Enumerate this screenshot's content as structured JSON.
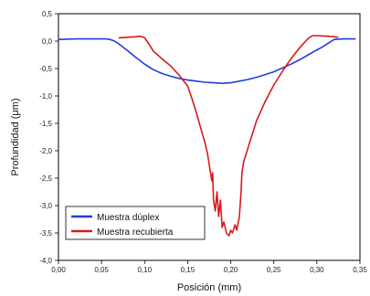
{
  "chart_data": {
    "type": "line",
    "xlabel": "Posición (mm)",
    "ylabel": "Profundidad (μm)",
    "xlim": [
      0.0,
      0.35
    ],
    "ylim": [
      -4.0,
      0.5
    ],
    "x_ticks": [
      "0,00",
      "0,05",
      "0,10",
      "0,15",
      "0,20",
      "0,25",
      "0,30",
      "0,35"
    ],
    "y_ticks": [
      "0,5",
      "0,0",
      "-0,5",
      "-1,0",
      "-1,5",
      "-2,0",
      "-2,5",
      "-3,0",
      "-3,5",
      "-4,0"
    ],
    "grid": false,
    "legend_position": "bottom-left",
    "series": [
      {
        "name": "Muestra dúplex",
        "color": "#1f3fd6",
        "points": [
          [
            0.0,
            0.03
          ],
          [
            0.02,
            0.04
          ],
          [
            0.04,
            0.04
          ],
          [
            0.055,
            0.04
          ],
          [
            0.06,
            0.03
          ],
          [
            0.065,
            0.0
          ],
          [
            0.07,
            -0.05
          ],
          [
            0.08,
            -0.17
          ],
          [
            0.09,
            -0.3
          ],
          [
            0.1,
            -0.42
          ],
          [
            0.11,
            -0.52
          ],
          [
            0.12,
            -0.59
          ],
          [
            0.13,
            -0.64
          ],
          [
            0.14,
            -0.68
          ],
          [
            0.15,
            -0.71
          ],
          [
            0.16,
            -0.73
          ],
          [
            0.17,
            -0.75
          ],
          [
            0.18,
            -0.76
          ],
          [
            0.19,
            -0.77
          ],
          [
            0.2,
            -0.76
          ],
          [
            0.21,
            -0.73
          ],
          [
            0.22,
            -0.7
          ],
          [
            0.23,
            -0.66
          ],
          [
            0.24,
            -0.61
          ],
          [
            0.25,
            -0.56
          ],
          [
            0.26,
            -0.49
          ],
          [
            0.27,
            -0.42
          ],
          [
            0.28,
            -0.34
          ],
          [
            0.29,
            -0.25
          ],
          [
            0.3,
            -0.16
          ],
          [
            0.305,
            -0.12
          ],
          [
            0.31,
            -0.07
          ],
          [
            0.315,
            -0.02
          ],
          [
            0.32,
            0.03
          ],
          [
            0.33,
            0.04
          ],
          [
            0.345,
            0.04
          ]
        ]
      },
      {
        "name": "Muestra recubierta",
        "color": "#d61a1a",
        "points": [
          [
            0.07,
            0.06
          ],
          [
            0.08,
            0.07
          ],
          [
            0.09,
            0.08
          ],
          [
            0.095,
            0.09
          ],
          [
            0.1,
            0.06
          ],
          [
            0.105,
            -0.05
          ],
          [
            0.11,
            -0.18
          ],
          [
            0.12,
            -0.32
          ],
          [
            0.13,
            -0.45
          ],
          [
            0.14,
            -0.62
          ],
          [
            0.15,
            -0.82
          ],
          [
            0.155,
            -1.05
          ],
          [
            0.16,
            -1.3
          ],
          [
            0.165,
            -1.58
          ],
          [
            0.17,
            -1.85
          ],
          [
            0.173,
            -2.05
          ],
          [
            0.176,
            -2.35
          ],
          [
            0.178,
            -2.55
          ],
          [
            0.179,
            -2.4
          ],
          [
            0.18,
            -2.9
          ],
          [
            0.182,
            -3.1
          ],
          [
            0.184,
            -2.75
          ],
          [
            0.186,
            -3.2
          ],
          [
            0.188,
            -2.9
          ],
          [
            0.19,
            -3.4
          ],
          [
            0.192,
            -3.3
          ],
          [
            0.195,
            -3.5
          ],
          [
            0.198,
            -3.55
          ],
          [
            0.2,
            -3.45
          ],
          [
            0.202,
            -3.5
          ],
          [
            0.205,
            -3.35
          ],
          [
            0.207,
            -3.45
          ],
          [
            0.21,
            -3.2
          ],
          [
            0.212,
            -2.75
          ],
          [
            0.213,
            -2.4
          ],
          [
            0.215,
            -2.2
          ],
          [
            0.22,
            -1.95
          ],
          [
            0.225,
            -1.7
          ],
          [
            0.23,
            -1.45
          ],
          [
            0.24,
            -1.1
          ],
          [
            0.25,
            -0.8
          ],
          [
            0.26,
            -0.55
          ],
          [
            0.27,
            -0.32
          ],
          [
            0.28,
            -0.12
          ],
          [
            0.29,
            0.05
          ],
          [
            0.295,
            0.1
          ],
          [
            0.3,
            0.1
          ],
          [
            0.31,
            0.09
          ],
          [
            0.32,
            0.08
          ],
          [
            0.325,
            0.07
          ]
        ]
      }
    ]
  }
}
